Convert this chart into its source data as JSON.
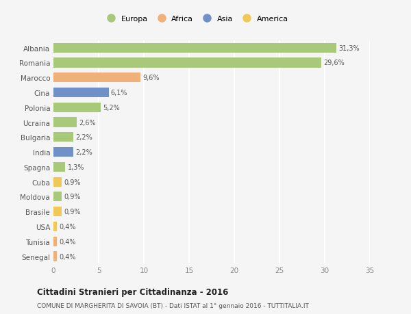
{
  "categories": [
    "Albania",
    "Romania",
    "Marocco",
    "Cina",
    "Polonia",
    "Ucraina",
    "Bulgaria",
    "India",
    "Spagna",
    "Cuba",
    "Moldova",
    "Brasile",
    "USA",
    "Tunisia",
    "Senegal"
  ],
  "values": [
    31.3,
    29.6,
    9.6,
    6.1,
    5.2,
    2.6,
    2.2,
    2.2,
    1.3,
    0.9,
    0.9,
    0.9,
    0.4,
    0.4,
    0.4
  ],
  "labels": [
    "31,3%",
    "29,6%",
    "9,6%",
    "6,1%",
    "5,2%",
    "2,6%",
    "2,2%",
    "2,2%",
    "1,3%",
    "0,9%",
    "0,9%",
    "0,9%",
    "0,4%",
    "0,4%",
    "0,4%"
  ],
  "colors": [
    "#a8c87a",
    "#a8c87a",
    "#f0b07a",
    "#7090c8",
    "#a8c87a",
    "#a8c87a",
    "#a8c87a",
    "#7090c8",
    "#a8c87a",
    "#f0c855",
    "#a8c87a",
    "#f0c855",
    "#f0c855",
    "#f0b07a",
    "#f0b07a"
  ],
  "legend_labels": [
    "Europa",
    "Africa",
    "Asia",
    "America"
  ],
  "legend_colors": [
    "#a8c87a",
    "#f0b07a",
    "#7090c8",
    "#f0c855"
  ],
  "title": "Cittadini Stranieri per Cittadinanza - 2016",
  "subtitle": "COMUNE DI MARGHERITA DI SAVOIA (BT) - Dati ISTAT al 1° gennaio 2016 - TUTTITALIA.IT",
  "xlim": [
    0,
    35
  ],
  "xticks": [
    0,
    5,
    10,
    15,
    20,
    25,
    30,
    35
  ],
  "background_color": "#f5f5f5",
  "grid_color": "#ffffff",
  "bar_height": 0.65
}
